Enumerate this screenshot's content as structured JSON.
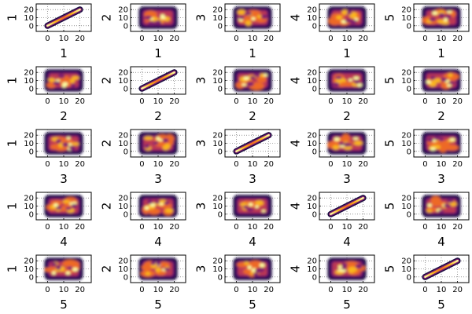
{
  "chart_data": {
    "type": "heatmap",
    "layout": {
      "rows": 5,
      "cols": 5
    },
    "variables": [
      "1",
      "2",
      "3",
      "4",
      "5"
    ],
    "axes": {
      "xlim": [
        -7,
        27
      ],
      "ylim": [
        -7,
        27
      ],
      "xticks": [
        0,
        10,
        20
      ],
      "yticks": [
        0,
        10,
        20
      ],
      "xtick_labels": [
        "0",
        "10",
        "20"
      ],
      "ytick_labels": [
        "0",
        "10",
        "20"
      ],
      "grid": true,
      "grid_style": "dotted"
    },
    "panels": {
      "off_diagonal": {
        "kind": "2d density heatmap",
        "x_range": [
          0,
          20
        ],
        "y_range": [
          0,
          20
        ],
        "colormap": "inferno"
      },
      "diagonal": {
        "kind": "density along identity line",
        "from": [
          0,
          0
        ],
        "to": [
          20,
          20
        ],
        "colormap": "inferno"
      }
    },
    "colors": {
      "dark": "#1b0c41",
      "purple": "#4b0c6b",
      "magenta": "#7f1d6e",
      "red": "#bc3754",
      "orange": "#ed6925",
      "amber": "#fbb61a",
      "yellow": "#fcffa4"
    }
  }
}
